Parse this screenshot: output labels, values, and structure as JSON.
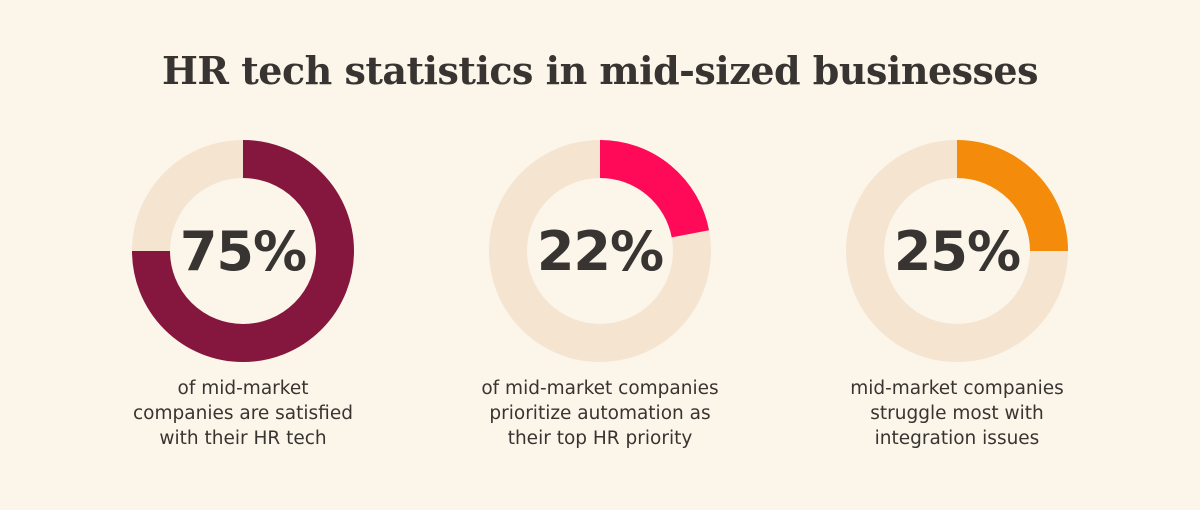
{
  "title": "HR tech statistics in mid-sized businesses",
  "chart_data": [
    {
      "type": "pie",
      "value": 75,
      "label": "75%",
      "caption_lines": [
        "of mid-market",
        "companies are satisfied",
        "with their HR tech"
      ],
      "color": "#85163e",
      "track_color": "#f5e4cf"
    },
    {
      "type": "pie",
      "value": 22,
      "label": "22%",
      "caption_lines": [
        "of mid-market companies",
        "prioritize automation as",
        "their top HR priority"
      ],
      "color": "#ff0a59",
      "track_color": "#f5e4cf"
    },
    {
      "type": "pie",
      "value": 25,
      "label": "25%",
      "caption_lines": [
        "mid-market companies",
        "struggle most with",
        "integration issues"
      ],
      "color": "#f48b0a",
      "track_color": "#f5e4cf"
    }
  ]
}
